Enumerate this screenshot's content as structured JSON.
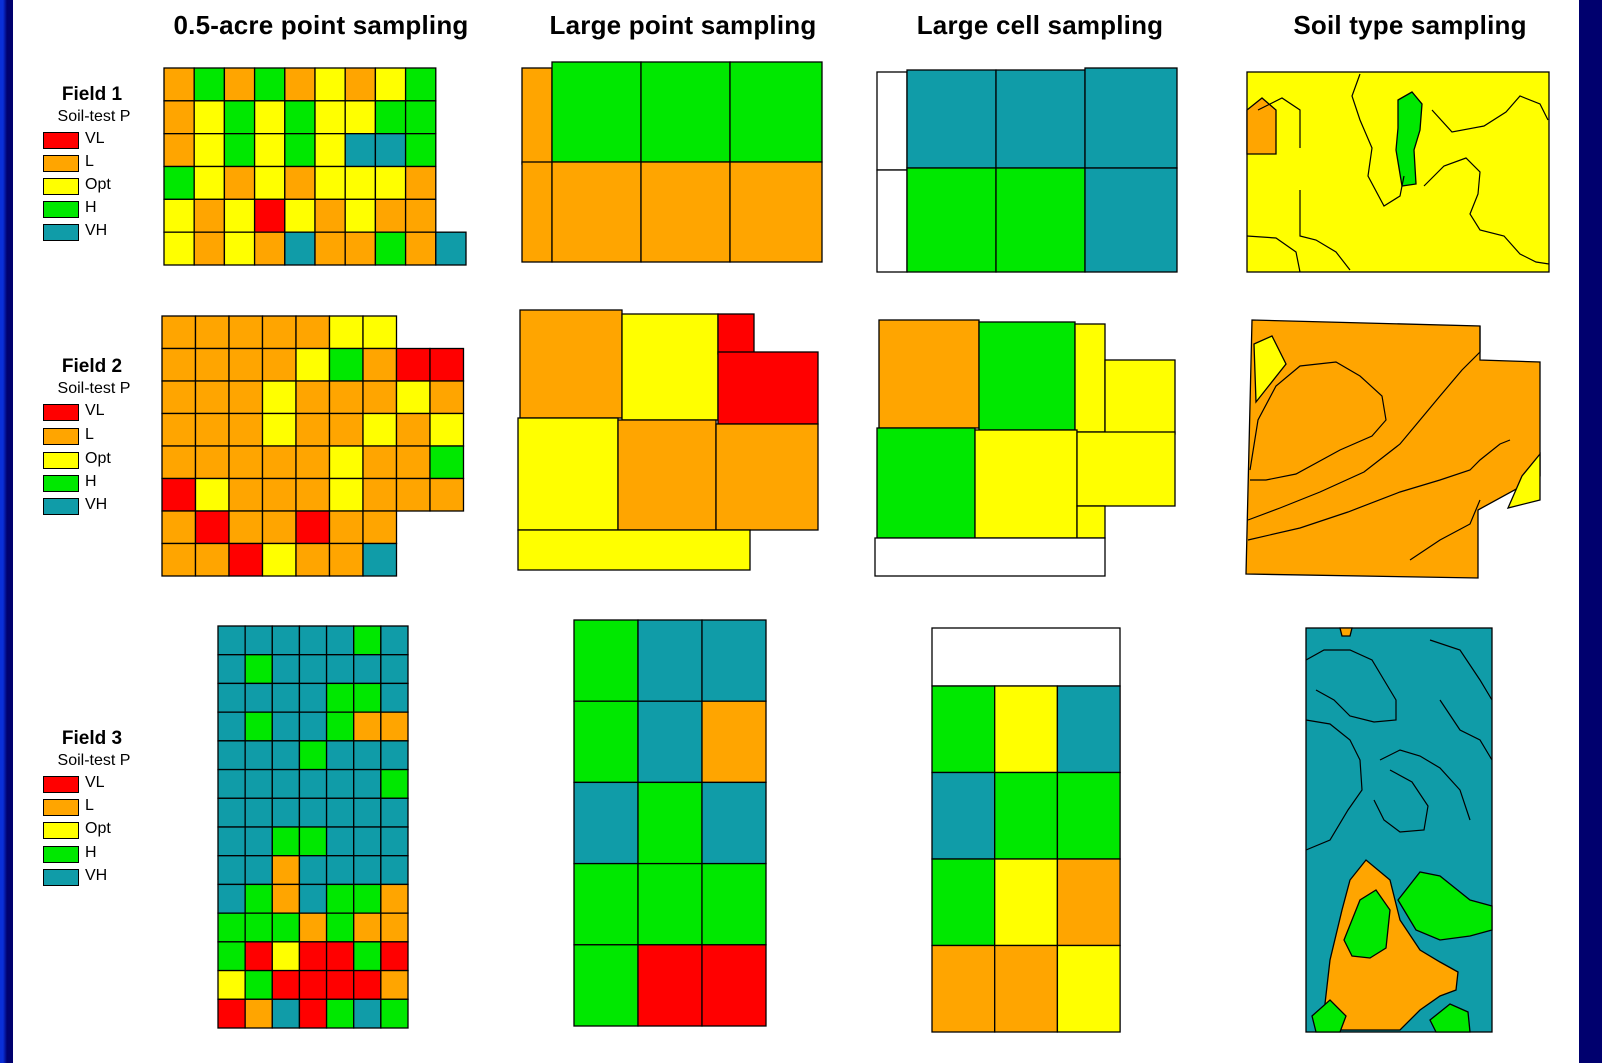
{
  "column_titles": [
    "0.5-acre point sampling",
    "Large point sampling",
    "Large cell sampling",
    "Soil type sampling"
  ],
  "colors": {
    "VL": "#ff0000",
    "L": "#ffa500",
    "Opt": "#ffff00",
    "H": "#00e800",
    "VH": "#109ca8",
    "none": "#ffffff",
    "background": "#00006e",
    "frame": "#ffffff"
  },
  "fields": [
    {
      "name": "Field 1",
      "subtitle": "Soil-test P",
      "legend": [
        {
          "code": "VL",
          "label": "VL"
        },
        {
          "code": "L",
          "label": "L"
        },
        {
          "code": "Opt",
          "label": "Opt"
        },
        {
          "code": "H",
          "label": "H"
        },
        {
          "code": "VH",
          "label": "VH"
        }
      ],
      "maps": {
        "point_05_acre": {
          "rows": [
            [
              "L",
              "H",
              "L",
              "H",
              "L",
              "Opt",
              "L",
              "Opt",
              "H"
            ],
            [
              "L",
              "Opt",
              "H",
              "Opt",
              "H",
              "Opt",
              "Opt",
              "H",
              "H"
            ],
            [
              "L",
              "Opt",
              "H",
              "Opt",
              "H",
              "Opt",
              "VH",
              "VH",
              "H"
            ],
            [
              "H",
              "Opt",
              "L",
              "Opt",
              "L",
              "Opt",
              "Opt",
              "Opt",
              "L"
            ],
            [
              "Opt",
              "L",
              "Opt",
              "VL",
              "Opt",
              "L",
              "Opt",
              "L",
              "L"
            ],
            [
              "Opt",
              "L",
              "Opt",
              "L",
              "VH",
              "L",
              "L",
              "H",
              "L",
              "VH"
            ]
          ]
        },
        "large_point": {
          "rows": [
            [
              "L",
              "H",
              "H",
              "H"
            ],
            [
              "L",
              "L",
              "L",
              "L"
            ]
          ]
        },
        "large_cell": {
          "rows": [
            [
              "none",
              "VH",
              "VH",
              "VH"
            ],
            [
              "none",
              "H",
              "H",
              "VH"
            ]
          ]
        },
        "soil_type": {
          "dominant": "Opt",
          "inclusions": [
            "H",
            "L"
          ]
        }
      }
    },
    {
      "name": "Field 2",
      "subtitle": "Soil-test P",
      "legend": [
        {
          "code": "VL",
          "label": "VL"
        },
        {
          "code": "L",
          "label": "L"
        },
        {
          "code": "Opt",
          "label": "Opt"
        },
        {
          "code": "H",
          "label": "H"
        },
        {
          "code": "VH",
          "label": "VH"
        }
      ],
      "maps": {
        "point_05_acre": {
          "rows": [
            [
              "L",
              "L",
              "L",
              "L",
              "L",
              "Opt",
              "Opt"
            ],
            [
              "L",
              "L",
              "L",
              "L",
              "Opt",
              "H",
              "L",
              "VL",
              "VL"
            ],
            [
              "L",
              "L",
              "L",
              "Opt",
              "L",
              "L",
              "L",
              "Opt",
              "L"
            ],
            [
              "L",
              "L",
              "L",
              "Opt",
              "L",
              "L",
              "Opt",
              "L",
              "Opt"
            ],
            [
              "L",
              "L",
              "L",
              "L",
              "L",
              "Opt",
              "L",
              "L",
              "H"
            ],
            [
              "VL",
              "Opt",
              "L",
              "L",
              "L",
              "Opt",
              "L",
              "L",
              "L"
            ],
            [
              "L",
              "VL",
              "L",
              "L",
              "VL",
              "L",
              "L"
            ],
            [
              "L",
              "L",
              "VL",
              "Opt",
              "L",
              "L",
              "VH"
            ]
          ]
        },
        "large_point": {
          "rows": [
            [
              "L",
              "Opt",
              "VL"
            ],
            [
              "Opt",
              "L",
              "L"
            ],
            [
              "Opt"
            ]
          ]
        },
        "large_cell": {
          "rows": [
            [
              "L",
              "H",
              "Opt"
            ],
            [
              "H",
              "Opt",
              "Opt"
            ],
            [
              "none"
            ]
          ]
        },
        "soil_type": {
          "dominant": "L",
          "inclusions": [
            "Opt"
          ]
        }
      }
    },
    {
      "name": "Field 3",
      "subtitle": "Soil-test P",
      "legend": [
        {
          "code": "VL",
          "label": "VL"
        },
        {
          "code": "L",
          "label": "L"
        },
        {
          "code": "Opt",
          "label": "Opt"
        },
        {
          "code": "H",
          "label": "H"
        },
        {
          "code": "VH",
          "label": "VH"
        }
      ],
      "maps": {
        "point_05_acre": {
          "rows": [
            [
              "VH",
              "VH",
              "VH",
              "VH",
              "VH",
              "H",
              "VH"
            ],
            [
              "VH",
              "H",
              "VH",
              "VH",
              "VH",
              "VH",
              "VH"
            ],
            [
              "VH",
              "VH",
              "VH",
              "VH",
              "H",
              "H",
              "VH"
            ],
            [
              "VH",
              "H",
              "VH",
              "VH",
              "H",
              "L",
              "L"
            ],
            [
              "VH",
              "VH",
              "VH",
              "H",
              "VH",
              "VH",
              "VH"
            ],
            [
              "VH",
              "VH",
              "VH",
              "VH",
              "VH",
              "VH",
              "H"
            ],
            [
              "VH",
              "VH",
              "VH",
              "VH",
              "VH",
              "VH",
              "VH"
            ],
            [
              "VH",
              "VH",
              "H",
              "H",
              "VH",
              "VH",
              "VH"
            ],
            [
              "VH",
              "VH",
              "L",
              "VH",
              "VH",
              "VH",
              "VH"
            ],
            [
              "VH",
              "H",
              "L",
              "VH",
              "H",
              "H",
              "L"
            ],
            [
              "H",
              "H",
              "H",
              "L",
              "H",
              "L",
              "L"
            ],
            [
              "H",
              "VL",
              "Opt",
              "VL",
              "VL",
              "H",
              "VL"
            ],
            [
              "Opt",
              "H",
              "VL",
              "VL",
              "VL",
              "VL",
              "L"
            ],
            [
              "VL",
              "L",
              "VH",
              "VL",
              "H",
              "VH",
              "H"
            ]
          ]
        },
        "large_point": {
          "rows": [
            [
              "H",
              "VH",
              "VH"
            ],
            [
              "H",
              "VH",
              "L"
            ],
            [
              "VH",
              "H",
              "VH"
            ],
            [
              "H",
              "H",
              "H"
            ],
            [
              "H",
              "VL",
              "VL"
            ]
          ]
        },
        "large_cell": {
          "rows": [
            [
              "none"
            ],
            [
              "H",
              "Opt",
              "VH"
            ],
            [
              "VH",
              "H",
              "H"
            ],
            [
              "H",
              "Opt",
              "L"
            ],
            [
              "L",
              "L",
              "Opt"
            ]
          ]
        },
        "soil_type": {
          "dominant": "VH",
          "inclusions": [
            "L",
            "H"
          ]
        }
      }
    }
  ]
}
